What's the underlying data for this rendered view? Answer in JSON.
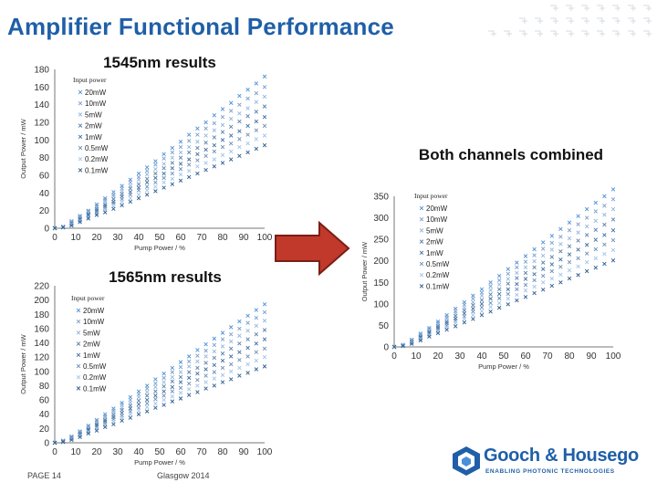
{
  "page": {
    "title": "Amplifier Functional Performance",
    "footer_page": "PAGE 14",
    "footer_center": "Glasgow 2014"
  },
  "logo": {
    "name": "Gooch & Housego",
    "tagline": "ENABLING PHOTONIC TECHNOLOGIES"
  },
  "colors": {
    "title_blue": "#1f5fa8",
    "arrow_red": "#c0392b",
    "logo_blue": "#1f5fa8"
  },
  "chart_data": [
    {
      "type": "scatter",
      "title": "1545nm results",
      "xlabel": "Pump Power / %",
      "ylabel": "Output Power / mW",
      "xlim": [
        0,
        100
      ],
      "ylim": [
        0,
        180
      ],
      "xticks": [
        0,
        10,
        20,
        30,
        40,
        50,
        60,
        70,
        80,
        90,
        100
      ],
      "yticks": [
        0,
        20,
        40,
        60,
        80,
        100,
        120,
        140,
        160,
        180
      ],
      "legend_title": "Input power",
      "legend_position": "upper-left",
      "marker": "x",
      "grid": false,
      "x": [
        0,
        4,
        8,
        12,
        16,
        20,
        24,
        28,
        32,
        36,
        40,
        44,
        48,
        52,
        56,
        60,
        64,
        68,
        72,
        76,
        80,
        84,
        88,
        92,
        96,
        100
      ],
      "series": [
        {
          "name": "20mW",
          "color": "#4a90d9",
          "values": [
            0,
            2,
            8,
            14,
            20,
            27,
            34,
            41,
            48,
            55,
            62,
            69,
            76,
            84,
            91,
            98,
            106,
            113,
            120,
            128,
            135,
            142,
            150,
            157,
            164,
            172
          ]
        },
        {
          "name": "10mW",
          "color": "#7a9cc8",
          "values": [
            0,
            2,
            7,
            13,
            19,
            25,
            32,
            38,
            45,
            52,
            58,
            65,
            72,
            79,
            86,
            92,
            99,
            106,
            113,
            119,
            126,
            133,
            140,
            147,
            153,
            160
          ]
        },
        {
          "name": "5mW",
          "color": "#8fb6df",
          "values": [
            0,
            2,
            7,
            12,
            18,
            24,
            30,
            36,
            42,
            48,
            55,
            61,
            67,
            73,
            80,
            86,
            92,
            98,
            105,
            111,
            117,
            124,
            130,
            136,
            143,
            149
          ]
        },
        {
          "name": "2mW",
          "color": "#5a7fa8",
          "values": [
            0,
            1,
            6,
            11,
            16,
            22,
            27,
            33,
            39,
            45,
            50,
            56,
            62,
            68,
            74,
            80,
            86,
            91,
            97,
            103,
            109,
            115,
            121,
            127,
            132,
            138
          ]
        },
        {
          "name": "1mW",
          "color": "#3b6ea0",
          "values": [
            0,
            1,
            5,
            10,
            15,
            20,
            25,
            30,
            36,
            41,
            46,
            52,
            57,
            62,
            68,
            73,
            78,
            84,
            89,
            94,
            100,
            105,
            110,
            116,
            121,
            126
          ]
        },
        {
          "name": "0.5mW",
          "color": "#6d8db5",
          "values": [
            0,
            1,
            5,
            9,
            14,
            18,
            23,
            28,
            33,
            38,
            43,
            47,
            52,
            57,
            62,
            67,
            72,
            77,
            82,
            87,
            92,
            96,
            101,
            106,
            111,
            116
          ]
        },
        {
          "name": "0.2mW",
          "color": "#9fc3e8",
          "values": [
            0,
            1,
            4,
            8,
            12,
            16,
            21,
            25,
            30,
            34,
            38,
            43,
            47,
            52,
            56,
            61,
            65,
            70,
            74,
            78,
            83,
            87,
            92,
            96,
            101,
            105
          ]
        },
        {
          "name": "0.1mW",
          "color": "#2b5d91",
          "values": [
            0,
            1,
            3,
            7,
            11,
            15,
            18,
            22,
            26,
            30,
            34,
            38,
            42,
            46,
            50,
            54,
            58,
            62,
            66,
            70,
            74,
            78,
            82,
            86,
            90,
            94
          ]
        }
      ]
    },
    {
      "type": "scatter",
      "title": "1565nm results",
      "xlabel": "Pump Power / %",
      "ylabel": "Output Power / mW",
      "xlim": [
        0,
        100
      ],
      "ylim": [
        0,
        220
      ],
      "xticks": [
        0,
        10,
        20,
        30,
        40,
        50,
        60,
        70,
        80,
        90,
        100
      ],
      "yticks": [
        0,
        20,
        40,
        60,
        80,
        100,
        120,
        140,
        160,
        180,
        200,
        220
      ],
      "legend_title": "Input power",
      "legend_position": "upper-left",
      "marker": "x",
      "grid": false,
      "x": [
        0,
        4,
        8,
        12,
        16,
        20,
        24,
        28,
        32,
        36,
        40,
        44,
        48,
        52,
        56,
        60,
        64,
        68,
        72,
        76,
        80,
        84,
        88,
        92,
        96,
        100
      ],
      "series": [
        {
          "name": "20mW",
          "color": "#4a90d9",
          "values": [
            0,
            3,
            9,
            16,
            24,
            32,
            40,
            48,
            56,
            64,
            72,
            80,
            89,
            97,
            105,
            113,
            121,
            130,
            138,
            146,
            154,
            162,
            170,
            178,
            186,
            194
          ]
        },
        {
          "name": "10mW",
          "color": "#7a9cc8",
          "values": [
            0,
            3,
            9,
            15,
            22,
            30,
            37,
            45,
            53,
            60,
            68,
            76,
            83,
            91,
            99,
            106,
            114,
            122,
            129,
            137,
            145,
            152,
            160,
            168,
            175,
            183
          ]
        },
        {
          "name": "5mW",
          "color": "#8fb6df",
          "values": [
            0,
            2,
            8,
            14,
            21,
            28,
            35,
            42,
            49,
            56,
            64,
            71,
            78,
            85,
            92,
            99,
            107,
            114,
            121,
            128,
            135,
            142,
            150,
            157,
            164,
            171
          ]
        },
        {
          "name": "2mW",
          "color": "#5a7fa8",
          "values": [
            0,
            2,
            7,
            13,
            19,
            26,
            32,
            39,
            46,
            52,
            59,
            66,
            72,
            79,
            86,
            92,
            99,
            105,
            112,
            119,
            125,
            132,
            139,
            145,
            152,
            158
          ]
        },
        {
          "name": "1mW",
          "color": "#3b6ea0",
          "values": [
            0,
            2,
            6,
            12,
            18,
            24,
            30,
            36,
            42,
            48,
            54,
            60,
            66,
            72,
            78,
            85,
            91,
            97,
            103,
            109,
            115,
            121,
            127,
            133,
            139,
            145
          ]
        },
        {
          "name": "0.5mW",
          "color": "#6d8db5",
          "values": [
            0,
            2,
            6,
            11,
            16,
            22,
            27,
            33,
            38,
            44,
            49,
            55,
            61,
            66,
            72,
            77,
            83,
            88,
            94,
            99,
            105,
            110,
            116,
            121,
            127,
            132
          ]
        },
        {
          "name": "0.2mW",
          "color": "#9fc3e8",
          "values": [
            0,
            1,
            5,
            10,
            15,
            20,
            25,
            30,
            35,
            40,
            45,
            50,
            55,
            60,
            65,
            70,
            75,
            80,
            85,
            90,
            95,
            100,
            105,
            110,
            115,
            120
          ]
        },
        {
          "name": "0.1mW",
          "color": "#2b5d91",
          "values": [
            0,
            1,
            4,
            8,
            13,
            17,
            22,
            26,
            31,
            35,
            40,
            44,
            49,
            53,
            58,
            62,
            67,
            71,
            76,
            80,
            85,
            89,
            94,
            98,
            103,
            107
          ]
        }
      ]
    },
    {
      "type": "scatter",
      "title": "Both channels combined",
      "xlabel": "Pump Power / %",
      "ylabel": "Output Power / mW",
      "xlim": [
        0,
        100
      ],
      "ylim": [
        0,
        350
      ],
      "xticks": [
        0,
        10,
        20,
        30,
        40,
        50,
        60,
        70,
        80,
        90,
        100
      ],
      "yticks": [
        0,
        50,
        100,
        150,
        200,
        250,
        300,
        350
      ],
      "legend_title": "Input power",
      "legend_position": "upper-left",
      "marker": "x",
      "grid": false,
      "x": [
        0,
        4,
        8,
        12,
        16,
        20,
        24,
        28,
        32,
        36,
        40,
        44,
        48,
        52,
        56,
        60,
        64,
        68,
        72,
        76,
        80,
        84,
        88,
        92,
        96,
        100
      ],
      "series": [
        {
          "name": "20mW",
          "color": "#4a90d9",
          "values": [
            0,
            5,
            17,
            31,
            44,
            59,
            74,
            89,
            104,
            119,
            134,
            150,
            165,
            181,
            196,
            211,
            227,
            243,
            258,
            274,
            289,
            304,
            320,
            335,
            350,
            366
          ]
        },
        {
          "name": "10mW",
          "color": "#7a9cc8",
          "values": [
            0,
            5,
            16,
            28,
            41,
            55,
            69,
            83,
            98,
            112,
            126,
            141,
            155,
            170,
            185,
            198,
            213,
            228,
            242,
            256,
            271,
            285,
            300,
            315,
            328,
            343
          ]
        },
        {
          "name": "5mW",
          "color": "#8fb6df",
          "values": [
            0,
            4,
            15,
            26,
            39,
            52,
            65,
            78,
            91,
            104,
            119,
            132,
            145,
            158,
            172,
            185,
            199,
            212,
            226,
            239,
            252,
            266,
            280,
            293,
            307,
            320
          ]
        },
        {
          "name": "2mW",
          "color": "#5a7fa8",
          "values": [
            0,
            3,
            13,
            24,
            35,
            48,
            59,
            72,
            85,
            97,
            109,
            122,
            134,
            147,
            160,
            172,
            185,
            196,
            209,
            222,
            234,
            247,
            260,
            272,
            284,
            296
          ]
        },
        {
          "name": "1mW",
          "color": "#3b6ea0",
          "values": [
            0,
            3,
            11,
            22,
            33,
            44,
            55,
            66,
            78,
            89,
            100,
            112,
            123,
            134,
            146,
            158,
            169,
            181,
            192,
            203,
            215,
            226,
            237,
            249,
            260,
            271
          ]
        },
        {
          "name": "0.5mW",
          "color": "#6d8db5",
          "values": [
            0,
            3,
            11,
            20,
            30,
            40,
            50,
            61,
            71,
            82,
            92,
            102,
            113,
            123,
            134,
            144,
            155,
            165,
            176,
            186,
            197,
            206,
            217,
            227,
            238,
            248
          ]
        },
        {
          "name": "0.2mW",
          "color": "#9fc3e8",
          "values": [
            0,
            2,
            9,
            18,
            27,
            36,
            46,
            55,
            65,
            74,
            83,
            93,
            102,
            112,
            121,
            131,
            140,
            150,
            159,
            168,
            178,
            187,
            197,
            206,
            216,
            225
          ]
        },
        {
          "name": "0.1mW",
          "color": "#2b5d91",
          "values": [
            0,
            2,
            7,
            15,
            24,
            32,
            40,
            48,
            57,
            65,
            74,
            82,
            91,
            99,
            108,
            116,
            125,
            133,
            142,
            150,
            159,
            167,
            176,
            184,
            193,
            201
          ]
        }
      ]
    }
  ]
}
